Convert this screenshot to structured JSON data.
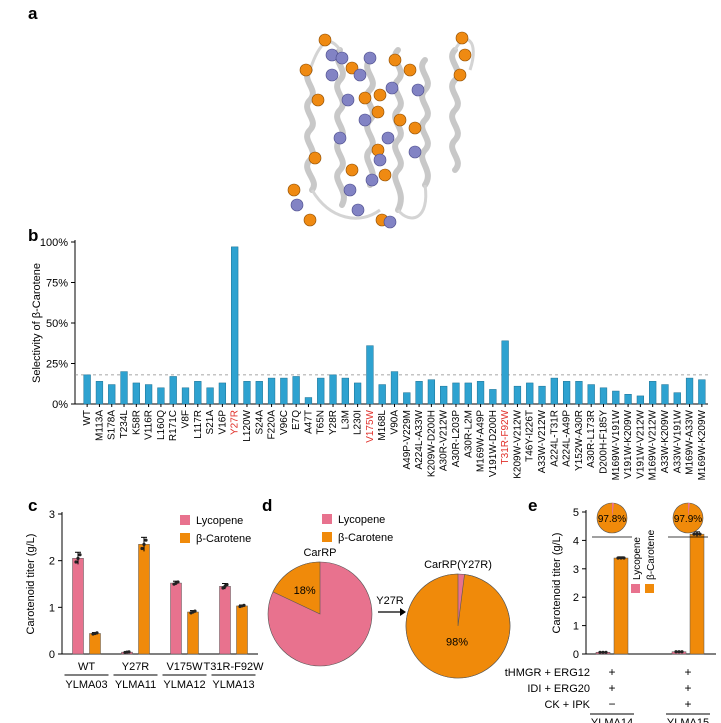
{
  "panels": {
    "a": "a",
    "b": "b",
    "c": "c",
    "d": "d",
    "e": "e"
  },
  "chart_data": [
    {
      "type": "bar",
      "panel": "b",
      "ylabel": "Selectivity of β-Carotene",
      "yticks": [
        "0%",
        "25%",
        "50%",
        "75%",
        "100%"
      ],
      "ylim": [
        0,
        100
      ],
      "reference_line": 18,
      "color": "#2ea2d0",
      "highlight_color": "#e0302a",
      "highlighted": [
        "Y27R",
        "V175W",
        "T31R-F92W"
      ],
      "categories": [
        "WT",
        "M113A",
        "S178A",
        "T234L",
        "K58R",
        "V116R",
        "L160Q",
        "R171C",
        "V8F",
        "L117R",
        "S21A",
        "V16P",
        "Y27R",
        "L120W",
        "S24A",
        "F220A",
        "V96C",
        "E7Q",
        "A47T",
        "T65N",
        "Y28R",
        "L3M",
        "L230I",
        "V175W",
        "M168L",
        "V90A",
        "A49P-V229M",
        "A224L-A33W",
        "K209W-D200H",
        "A30R-V212W",
        "A30R-L203P",
        "A30R-L2M",
        "M169W-A49P",
        "V191W-D200H",
        "T31R-F92W",
        "K209W-V212W",
        "T46Y-I226T",
        "A33W-V212W",
        "A224L-T31R",
        "A224L-A49P",
        "Y152W-A30R",
        "A30R-L173R",
        "D200H-F185Y",
        "M169W-V191W",
        "V191W-K209W",
        "V191W-V212W",
        "M169W-V212W",
        "A33W-K209W",
        "A33W-V191W",
        "M169W-A33W",
        "M169W-K209W"
      ],
      "values": [
        18,
        14,
        12,
        20,
        13,
        12,
        10,
        17,
        10,
        14,
        10,
        13,
        97,
        14,
        14,
        16,
        16,
        17,
        4,
        16,
        18,
        16,
        13,
        36,
        12,
        20,
        7,
        14,
        15,
        11,
        13,
        13,
        14,
        9,
        39,
        11,
        13,
        11,
        16,
        14,
        14,
        12,
        10,
        8,
        6,
        5,
        14,
        12,
        7,
        16,
        15
      ]
    },
    {
      "type": "bar",
      "panel": "c",
      "ylabel": "Carotenoid titer (g/L)",
      "ylim": [
        0,
        3
      ],
      "yticks": [
        "0",
        "1",
        "2",
        "3"
      ],
      "categories": [
        "WT",
        "Y27R",
        "V175W",
        "T31R-F92W"
      ],
      "strains": [
        "YLMA03",
        "YLMA11",
        "YLMA12",
        "YLMA13"
      ],
      "series": [
        {
          "name": "Lycopene",
          "color": "#e8728e",
          "values": [
            2.05,
            0.04,
            1.52,
            1.45
          ],
          "err": [
            0.13,
            0.01,
            0.04,
            0.06
          ]
        },
        {
          "name": "β-Carotene",
          "color": "#f08a0a",
          "values": [
            0.44,
            2.35,
            0.9,
            1.03
          ],
          "err": [
            0.02,
            0.15,
            0.03,
            0.02
          ]
        }
      ]
    },
    {
      "type": "pie",
      "panel": "d",
      "legend": [
        "Lycopene",
        "β-Carotene"
      ],
      "colors": {
        "lycopene": "#e8728e",
        "carotene": "#f08a0a"
      },
      "arrow_label": "Y27R",
      "pies": [
        {
          "title": "CarRP",
          "carotene_pct": 18,
          "label": "18%"
        },
        {
          "title": "CarRP(Y27R)",
          "carotene_pct": 98,
          "label": "98%"
        }
      ]
    },
    {
      "type": "bar",
      "panel": "e",
      "ylabel": "Carotenoid titer (g/L)",
      "ylim": [
        0,
        5
      ],
      "yticks": [
        "0",
        "1",
        "2",
        "3",
        "4",
        "5"
      ],
      "legend": [
        "Lycopene",
        "β-Carotene"
      ],
      "strains": [
        "YLMA14",
        "YLMA15"
      ],
      "series": [
        {
          "name": "Lycopene",
          "color": "#e8728e",
          "values": [
            0.06,
            0.08
          ]
        },
        {
          "name": "β-Carotene",
          "color": "#f08a0a",
          "values": [
            3.38,
            4.22
          ],
          "err": [
            0.04,
            0.08
          ]
        }
      ],
      "pie_labels": [
        "97.8%",
        "97.9%"
      ],
      "pie_carotene_pct": [
        97.8,
        97.9
      ],
      "conditions": [
        {
          "label": "tHMGR + ERG12",
          "marks": [
            "+",
            "+"
          ]
        },
        {
          "label": "IDI + ERG20",
          "marks": [
            "+",
            "+"
          ]
        },
        {
          "label": "CK + IPK",
          "marks": [
            "−",
            "+"
          ]
        }
      ]
    }
  ]
}
